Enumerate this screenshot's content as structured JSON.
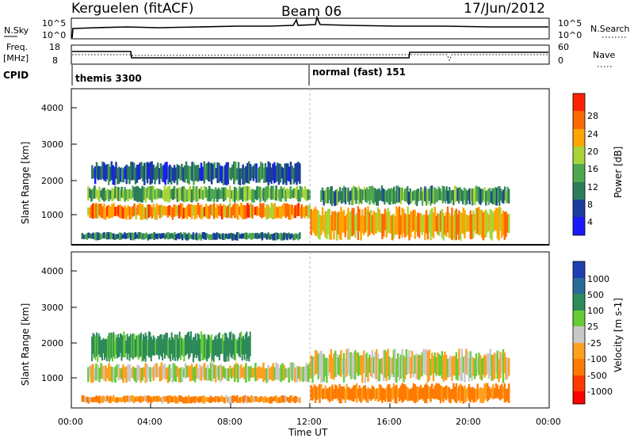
{
  "header": {
    "station": "Kerguelen (fitACF)",
    "beam": "Beam 06",
    "date": "17/Jun/2012"
  },
  "noise_panel": {
    "label": "N.Sky",
    "right_label": "N.Search",
    "left_ticks": [
      "10^5",
      "10^0"
    ],
    "right_ticks": [
      "10^5",
      "10^0"
    ]
  },
  "freq_panel": {
    "label_line1": "Freq.",
    "label_line2": "[MHz]",
    "right_label": "Nave",
    "left_ticks": [
      "18",
      "8"
    ],
    "right_ticks": [
      "60",
      "0"
    ]
  },
  "cpid": {
    "label": "CPID",
    "mode1": "themis 3300",
    "mode2": "normal (fast) 151"
  },
  "x_axis": {
    "label": "Time UT",
    "ticks": [
      "00:00",
      "04:00",
      "08:00",
      "12:00",
      "16:00",
      "20:00",
      "00:00"
    ]
  },
  "power_panel": {
    "ylabel": "Slant Range [km]",
    "yticks": [
      "4000",
      "3000",
      "2000",
      "1000"
    ],
    "colorbar_label": "Power [dB]",
    "colorbar_ticks": [
      "28",
      "24",
      "20",
      "16",
      "12",
      "8",
      "4"
    ]
  },
  "velocity_panel": {
    "ylabel": "Slant Range [km]",
    "yticks": [
      "4000",
      "3000",
      "2000",
      "1000"
    ],
    "colorbar_label": "Velocity [m s-1]",
    "colorbar_ticks": [
      "1000",
      "500",
      "100",
      "25",
      "-25",
      "-100",
      "-500",
      "-1000"
    ]
  },
  "chart_data": [
    {
      "type": "heatmap",
      "title": "Kerguelen (fitACF) Beam 06 17/Jun/2012",
      "xlabel": "Time UT",
      "ylabel": "Slant Range [km]",
      "xlim": [
        0,
        24
      ],
      "ylim": [
        180,
        4700
      ],
      "colorbar": "Power [dB]",
      "colorbar_ticks": [
        4,
        8,
        12,
        16,
        20,
        24,
        28
      ],
      "colors": [
        "#1a1aff",
        "#1a3d9e",
        "#2d7d5a",
        "#4ea84e",
        "#a8d43a",
        "#ffa500",
        "#ff6a00",
        "#ff2200"
      ],
      "echo_regions": [
        {
          "t0": 0.8,
          "t1": 12.0,
          "r0": 900,
          "r1": 1400,
          "power": 24
        },
        {
          "t0": 0.8,
          "t1": 12.0,
          "r0": 1400,
          "r1": 1900,
          "power": 14
        },
        {
          "t0": 1.0,
          "t1": 11.5,
          "r0": 1900,
          "r1": 2600,
          "power": 8
        },
        {
          "t0": 12.0,
          "t1": 22.0,
          "r0": 300,
          "r1": 1300,
          "power": 22
        },
        {
          "t0": 12.5,
          "t1": 22.0,
          "r0": 1300,
          "r1": 1900,
          "power": 12
        },
        {
          "t0": 0.5,
          "t1": 11.5,
          "r0": 300,
          "r1": 550,
          "power": 10
        }
      ]
    },
    {
      "type": "heatmap",
      "title": "",
      "xlabel": "Time UT",
      "ylabel": "Slant Range [km]",
      "xlim": [
        0,
        24
      ],
      "ylim": [
        180,
        4700
      ],
      "colorbar": "Velocity [m s-1]",
      "colorbar_ticks": [
        1000,
        500,
        100,
        25,
        -25,
        -100,
        -500,
        -1000
      ],
      "colors": [
        "#1f3fb0",
        "#2a6a98",
        "#2d8a5a",
        "#66cc33",
        "#c8c8c8",
        "#ffa020",
        "#ff7a00",
        "#ff3a00",
        "#ff0000"
      ],
      "echo_regions": [
        {
          "t0": 0.8,
          "t1": 12.0,
          "r0": 900,
          "r1": 1500,
          "velocity": 0
        },
        {
          "t0": 1.0,
          "t1": 9.0,
          "r0": 1500,
          "r1": 2400,
          "velocity": 150
        },
        {
          "t0": 12.0,
          "t1": 22.0,
          "r0": 900,
          "r1": 1900,
          "velocity": 0
        },
        {
          "t0": 12.0,
          "t1": 22.0,
          "r0": 300,
          "r1": 900,
          "velocity": -150
        },
        {
          "t0": 0.5,
          "t1": 11.5,
          "r0": 300,
          "r1": 550,
          "velocity": -100
        }
      ]
    }
  ]
}
